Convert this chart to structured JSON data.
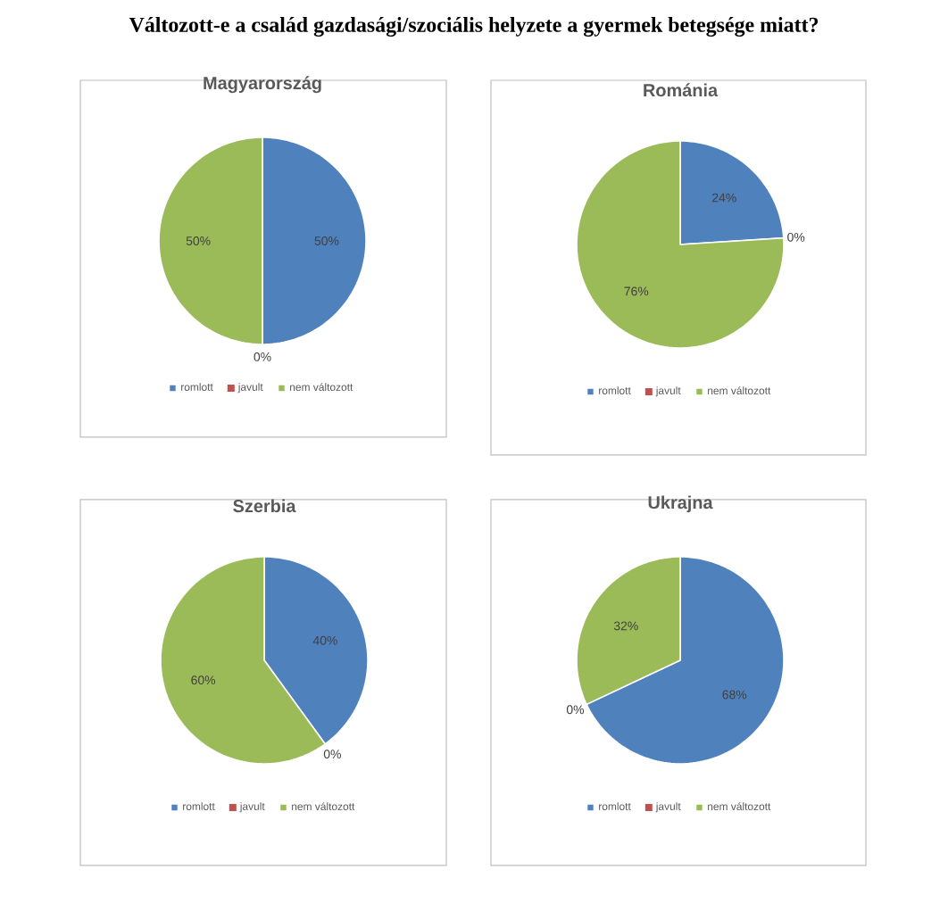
{
  "chart_data": [
    {
      "type": "pie",
      "title": "Magyarország",
      "annotations": [
        "Változott-e a család gazdasági/szociális helyzete a gyermek betegsége miatt?"
      ],
      "categories": [
        "romlott",
        "javult",
        "nem változott"
      ],
      "values": [
        50,
        0,
        50
      ],
      "value_labels": [
        "50%",
        "0%",
        "50%"
      ],
      "colors": [
        "#4f81bd",
        "#c0504d",
        "#9bbb59"
      ],
      "legend": "bottom"
    },
    {
      "type": "pie",
      "title": "Románia",
      "categories": [
        "romlott",
        "javult",
        "nem változott"
      ],
      "values": [
        24,
        0,
        76
      ],
      "value_labels": [
        "24%",
        "0%",
        "76%"
      ],
      "colors": [
        "#4f81bd",
        "#c0504d",
        "#9bbb59"
      ],
      "legend": "bottom"
    },
    {
      "type": "pie",
      "title": "Szerbia",
      "categories": [
        "romlott",
        "javult",
        "nem változott"
      ],
      "values": [
        40,
        0,
        60
      ],
      "value_labels": [
        "40%",
        "0%",
        "60%"
      ],
      "colors": [
        "#4f81bd",
        "#c0504d",
        "#9bbb59"
      ],
      "legend": "bottom"
    },
    {
      "type": "pie",
      "title": "Ukrajna",
      "categories": [
        "romlott",
        "javult",
        "nem változott"
      ],
      "values": [
        68,
        0,
        32
      ],
      "value_labels": [
        "68%",
        "0%",
        "32%"
      ],
      "colors": [
        "#4f81bd",
        "#c0504d",
        "#9bbb59"
      ],
      "legend": "bottom"
    }
  ]
}
